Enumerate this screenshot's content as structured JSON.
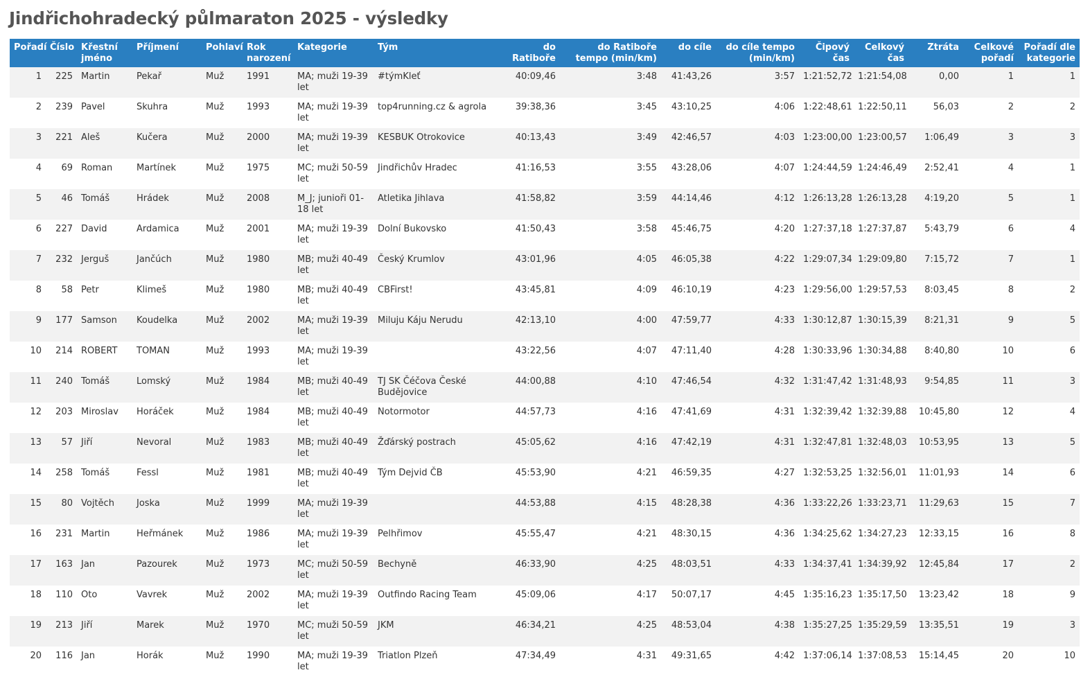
{
  "page": {
    "title": "Jindřichohradecký půlmaraton 2025 - výsledky"
  },
  "columns": [
    {
      "key": "poradi",
      "label": "Pořadí",
      "align": "right"
    },
    {
      "key": "cislo",
      "label": "Číslo",
      "align": "right"
    },
    {
      "key": "krestni",
      "label": "Křestní jméno",
      "align": "left"
    },
    {
      "key": "prijmeni",
      "label": "Příjmení",
      "align": "left"
    },
    {
      "key": "pohlavi",
      "label": "Pohlaví",
      "align": "left"
    },
    {
      "key": "rok",
      "label": "Rok narození",
      "align": "left"
    },
    {
      "key": "kategorie",
      "label": "Kategorie",
      "align": "left"
    },
    {
      "key": "tym",
      "label": "Tým",
      "align": "left"
    },
    {
      "key": "do_ratibore",
      "label": "do Ratiboře",
      "align": "right"
    },
    {
      "key": "ratibor_tempo",
      "label": "do Ratiboře tempo (min/km)",
      "align": "right"
    },
    {
      "key": "do_cile",
      "label": "do cíle",
      "align": "right"
    },
    {
      "key": "cil_tempo",
      "label": "do cíle tempo (min/km)",
      "align": "right"
    },
    {
      "key": "cipovy",
      "label": "Čipový čas",
      "align": "right"
    },
    {
      "key": "celkovy",
      "label": "Celkový čas",
      "align": "right"
    },
    {
      "key": "ztrata",
      "label": "Ztráta",
      "align": "right"
    },
    {
      "key": "celkove_poradi",
      "label": "Celkové pořadí",
      "align": "right"
    },
    {
      "key": "poradi_kat",
      "label": "Pořadí dle kategorie",
      "align": "right"
    }
  ],
  "rows": [
    {
      "poradi": "1",
      "cislo": "225",
      "krestni": "Martin",
      "prijmeni": "Pekař",
      "pohlavi": "Muž",
      "rok": "1991",
      "kategorie": "MA; muži 19-39 let",
      "tym": "#týmKleť",
      "do_ratibore": "40:09,46",
      "ratibor_tempo": "3:48",
      "do_cile": "41:43,26",
      "cil_tempo": "3:57",
      "cipovy": "1:21:52,72",
      "celkovy": "1:21:54,08",
      "ztrata": "0,00",
      "celkove_poradi": "1",
      "poradi_kat": "1"
    },
    {
      "poradi": "2",
      "cislo": "239",
      "krestni": "Pavel",
      "prijmeni": "Skuhra",
      "pohlavi": "Muž",
      "rok": "1993",
      "kategorie": "MA; muži 19-39 let",
      "tym": "top4running.cz & agrola",
      "do_ratibore": "39:38,36",
      "ratibor_tempo": "3:45",
      "do_cile": "43:10,25",
      "cil_tempo": "4:06",
      "cipovy": "1:22:48,61",
      "celkovy": "1:22:50,11",
      "ztrata": "56,03",
      "celkove_poradi": "2",
      "poradi_kat": "2"
    },
    {
      "poradi": "3",
      "cislo": "221",
      "krestni": "Aleš",
      "prijmeni": "Kučera",
      "pohlavi": "Muž",
      "rok": "2000",
      "kategorie": "MA; muži 19-39 let",
      "tym": "KESBUK Otrokovice",
      "do_ratibore": "40:13,43",
      "ratibor_tempo": "3:49",
      "do_cile": "42:46,57",
      "cil_tempo": "4:03",
      "cipovy": "1:23:00,00",
      "celkovy": "1:23:00,57",
      "ztrata": "1:06,49",
      "celkove_poradi": "3",
      "poradi_kat": "3"
    },
    {
      "poradi": "4",
      "cislo": "69",
      "krestni": "Roman",
      "prijmeni": "Martínek",
      "pohlavi": "Muž",
      "rok": "1975",
      "kategorie": "MC; muži 50-59 let",
      "tym": "Jindřichův Hradec",
      "do_ratibore": "41:16,53",
      "ratibor_tempo": "3:55",
      "do_cile": "43:28,06",
      "cil_tempo": "4:07",
      "cipovy": "1:24:44,59",
      "celkovy": "1:24:46,49",
      "ztrata": "2:52,41",
      "celkove_poradi": "4",
      "poradi_kat": "1"
    },
    {
      "poradi": "5",
      "cislo": "46",
      "krestni": "Tomáš",
      "prijmeni": "Hrádek",
      "pohlavi": "Muž",
      "rok": "2008",
      "kategorie": "M_J; junioři 01-18 let",
      "tym": "Atletika Jihlava",
      "do_ratibore": "41:58,82",
      "ratibor_tempo": "3:59",
      "do_cile": "44:14,46",
      "cil_tempo": "4:12",
      "cipovy": "1:26:13,28",
      "celkovy": "1:26:13,28",
      "ztrata": "4:19,20",
      "celkove_poradi": "5",
      "poradi_kat": "1"
    },
    {
      "poradi": "6",
      "cislo": "227",
      "krestni": "David",
      "prijmeni": "Ardamica",
      "pohlavi": "Muž",
      "rok": "2001",
      "kategorie": "MA; muži 19-39 let",
      "tym": "Dolní Bukovsko",
      "do_ratibore": "41:50,43",
      "ratibor_tempo": "3:58",
      "do_cile": "45:46,75",
      "cil_tempo": "4:20",
      "cipovy": "1:27:37,18",
      "celkovy": "1:27:37,87",
      "ztrata": "5:43,79",
      "celkove_poradi": "6",
      "poradi_kat": "4"
    },
    {
      "poradi": "7",
      "cislo": "232",
      "krestni": "Jerguš",
      "prijmeni": "Jančúch",
      "pohlavi": "Muž",
      "rok": "1980",
      "kategorie": "MB; muži 40-49 let",
      "tym": "Český Krumlov",
      "do_ratibore": "43:01,96",
      "ratibor_tempo": "4:05",
      "do_cile": "46:05,38",
      "cil_tempo": "4:22",
      "cipovy": "1:29:07,34",
      "celkovy": "1:29:09,80",
      "ztrata": "7:15,72",
      "celkove_poradi": "7",
      "poradi_kat": "1"
    },
    {
      "poradi": "8",
      "cislo": "58",
      "krestni": "Petr",
      "prijmeni": "Klimeš",
      "pohlavi": "Muž",
      "rok": "1980",
      "kategorie": "MB; muži 40-49 let",
      "tym": "CBFirst!",
      "do_ratibore": "43:45,81",
      "ratibor_tempo": "4:09",
      "do_cile": "46:10,19",
      "cil_tempo": "4:23",
      "cipovy": "1:29:56,00",
      "celkovy": "1:29:57,53",
      "ztrata": "8:03,45",
      "celkove_poradi": "8",
      "poradi_kat": "2"
    },
    {
      "poradi": "9",
      "cislo": "177",
      "krestni": "Samson",
      "prijmeni": "Koudelka",
      "pohlavi": "Muž",
      "rok": "2002",
      "kategorie": "MA; muži 19-39 let",
      "tym": "Miluju Káju Nerudu",
      "do_ratibore": "42:13,10",
      "ratibor_tempo": "4:00",
      "do_cile": "47:59,77",
      "cil_tempo": "4:33",
      "cipovy": "1:30:12,87",
      "celkovy": "1:30:15,39",
      "ztrata": "8:21,31",
      "celkove_poradi": "9",
      "poradi_kat": "5"
    },
    {
      "poradi": "10",
      "cislo": "214",
      "krestni": "ROBERT",
      "prijmeni": "TOMAN",
      "pohlavi": "Muž",
      "rok": "1993",
      "kategorie": "MA; muži 19-39 let",
      "tym": "",
      "do_ratibore": "43:22,56",
      "ratibor_tempo": "4:07",
      "do_cile": "47:11,40",
      "cil_tempo": "4:28",
      "cipovy": "1:30:33,96",
      "celkovy": "1:30:34,88",
      "ztrata": "8:40,80",
      "celkove_poradi": "10",
      "poradi_kat": "6"
    },
    {
      "poradi": "11",
      "cislo": "240",
      "krestni": "Tomáš",
      "prijmeni": "Lomský",
      "pohlavi": "Muž",
      "rok": "1984",
      "kategorie": "MB; muži 40-49 let",
      "tym": "TJ SK Čéčova České Budějovice",
      "do_ratibore": "44:00,88",
      "ratibor_tempo": "4:10",
      "do_cile": "47:46,54",
      "cil_tempo": "4:32",
      "cipovy": "1:31:47,42",
      "celkovy": "1:31:48,93",
      "ztrata": "9:54,85",
      "celkove_poradi": "11",
      "poradi_kat": "3"
    },
    {
      "poradi": "12",
      "cislo": "203",
      "krestni": "Miroslav",
      "prijmeni": "Horáček",
      "pohlavi": "Muž",
      "rok": "1984",
      "kategorie": "MB; muži 40-49 let",
      "tym": "Notormotor",
      "do_ratibore": "44:57,73",
      "ratibor_tempo": "4:16",
      "do_cile": "47:41,69",
      "cil_tempo": "4:31",
      "cipovy": "1:32:39,42",
      "celkovy": "1:32:39,88",
      "ztrata": "10:45,80",
      "celkove_poradi": "12",
      "poradi_kat": "4"
    },
    {
      "poradi": "13",
      "cislo": "57",
      "krestni": "Jiří",
      "prijmeni": "Nevoral",
      "pohlavi": "Muž",
      "rok": "1983",
      "kategorie": "MB; muži 40-49 let",
      "tym": "Žďárský postrach",
      "do_ratibore": "45:05,62",
      "ratibor_tempo": "4:16",
      "do_cile": "47:42,19",
      "cil_tempo": "4:31",
      "cipovy": "1:32:47,81",
      "celkovy": "1:32:48,03",
      "ztrata": "10:53,95",
      "celkove_poradi": "13",
      "poradi_kat": "5"
    },
    {
      "poradi": "14",
      "cislo": "258",
      "krestni": "Tomáš",
      "prijmeni": "Fessl",
      "pohlavi": "Muž",
      "rok": "1981",
      "kategorie": "MB; muži 40-49 let",
      "tym": "Tým Dejvid ČB",
      "do_ratibore": "45:53,90",
      "ratibor_tempo": "4:21",
      "do_cile": "46:59,35",
      "cil_tempo": "4:27",
      "cipovy": "1:32:53,25",
      "celkovy": "1:32:56,01",
      "ztrata": "11:01,93",
      "celkove_poradi": "14",
      "poradi_kat": "6"
    },
    {
      "poradi": "15",
      "cislo": "80",
      "krestni": "Vojtěch",
      "prijmeni": "Joska",
      "pohlavi": "Muž",
      "rok": "1999",
      "kategorie": "MA; muži 19-39 let",
      "tym": "",
      "do_ratibore": "44:53,88",
      "ratibor_tempo": "4:15",
      "do_cile": "48:28,38",
      "cil_tempo": "4:36",
      "cipovy": "1:33:22,26",
      "celkovy": "1:33:23,71",
      "ztrata": "11:29,63",
      "celkove_poradi": "15",
      "poradi_kat": "7"
    },
    {
      "poradi": "16",
      "cislo": "231",
      "krestni": "Martin",
      "prijmeni": "Heřmánek",
      "pohlavi": "Muž",
      "rok": "1986",
      "kategorie": "MA; muži 19-39 let",
      "tym": "Pelhřimov",
      "do_ratibore": "45:55,47",
      "ratibor_tempo": "4:21",
      "do_cile": "48:30,15",
      "cil_tempo": "4:36",
      "cipovy": "1:34:25,62",
      "celkovy": "1:34:27,23",
      "ztrata": "12:33,15",
      "celkove_poradi": "16",
      "poradi_kat": "8"
    },
    {
      "poradi": "17",
      "cislo": "163",
      "krestni": "Jan",
      "prijmeni": "Pazourek",
      "pohlavi": "Muž",
      "rok": "1973",
      "kategorie": "MC; muži 50-59 let",
      "tym": "Bechyně",
      "do_ratibore": "46:33,90",
      "ratibor_tempo": "4:25",
      "do_cile": "48:03,51",
      "cil_tempo": "4:33",
      "cipovy": "1:34:37,41",
      "celkovy": "1:34:39,92",
      "ztrata": "12:45,84",
      "celkove_poradi": "17",
      "poradi_kat": "2"
    },
    {
      "poradi": "18",
      "cislo": "110",
      "krestni": "Oto",
      "prijmeni": "Vavrek",
      "pohlavi": "Muž",
      "rok": "2002",
      "kategorie": "MA; muži 19-39 let",
      "tym": "Outfindo Racing Team",
      "do_ratibore": "45:09,06",
      "ratibor_tempo": "4:17",
      "do_cile": "50:07,17",
      "cil_tempo": "4:45",
      "cipovy": "1:35:16,23",
      "celkovy": "1:35:17,50",
      "ztrata": "13:23,42",
      "celkove_poradi": "18",
      "poradi_kat": "9"
    },
    {
      "poradi": "19",
      "cislo": "213",
      "krestni": "Jiří",
      "prijmeni": "Marek",
      "pohlavi": "Muž",
      "rok": "1970",
      "kategorie": "MC; muži 50-59 let",
      "tym": "JKM",
      "do_ratibore": "46:34,21",
      "ratibor_tempo": "4:25",
      "do_cile": "48:53,04",
      "cil_tempo": "4:38",
      "cipovy": "1:35:27,25",
      "celkovy": "1:35:29,59",
      "ztrata": "13:35,51",
      "celkove_poradi": "19",
      "poradi_kat": "3"
    },
    {
      "poradi": "20",
      "cislo": "116",
      "krestni": "Jan",
      "prijmeni": "Horák",
      "pohlavi": "Muž",
      "rok": "1990",
      "kategorie": "MA; muži 19-39 let",
      "tym": "Triatlon Plzeň",
      "do_ratibore": "47:34,49",
      "ratibor_tempo": "4:31",
      "do_cile": "49:31,65",
      "cil_tempo": "4:42",
      "cipovy": "1:37:06,14",
      "celkovy": "1:37:08,53",
      "ztrata": "15:14,45",
      "celkove_poradi": "20",
      "poradi_kat": "10"
    }
  ]
}
